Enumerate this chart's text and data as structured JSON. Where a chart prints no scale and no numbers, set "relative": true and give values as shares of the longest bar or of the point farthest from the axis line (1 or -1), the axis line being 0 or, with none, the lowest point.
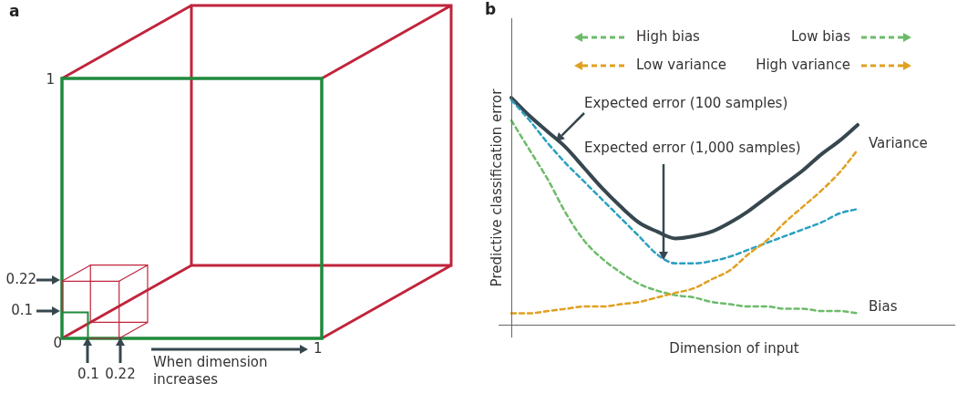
{
  "chart_data": [
    {
      "type": "other",
      "title": "a",
      "annotations": [
        "1",
        "0.22",
        "0.1",
        "0",
        "0.1",
        "0.22",
        "1",
        "When dimension increases"
      ]
    },
    {
      "type": "line",
      "title": "b",
      "xlabel": "Dimension of input",
      "ylabel": "Predictive classification error",
      "relative": true,
      "marker": "none",
      "categories": [
        null,
        null,
        null,
        null,
        null,
        null,
        null,
        null,
        null,
        null,
        null,
        null,
        null,
        null,
        null,
        null,
        null,
        null,
        null,
        null
      ],
      "series": [
        {
          "color": "#37474f",
          "line_style": "solid",
          "values": [
            1.0,
            0.92,
            0.85,
            0.78,
            0.69,
            0.6,
            0.52,
            0.45,
            0.41,
            0.38,
            0.39,
            0.41,
            0.45,
            0.5,
            0.56,
            0.62,
            0.68,
            0.75,
            0.81,
            0.88
          ]
        },
        {
          "color": "#2aa0c0",
          "line_style": "dashed",
          "values": [
            0.99,
            0.9,
            0.8,
            0.71,
            0.63,
            0.55,
            0.47,
            0.39,
            0.31,
            0.27,
            0.27,
            0.28,
            0.3,
            0.33,
            0.36,
            0.39,
            0.42,
            0.45,
            0.49,
            0.51
          ]
        },
        {
          "name": "Bias",
          "color": "#6dbb6a",
          "line_style": "dashed",
          "values": [
            0.9,
            0.77,
            0.64,
            0.49,
            0.37,
            0.29,
            0.23,
            0.18,
            0.15,
            0.13,
            0.12,
            0.1,
            0.09,
            0.08,
            0.08,
            0.07,
            0.07,
            0.06,
            0.06,
            0.05
          ]
        },
        {
          "name": "Variance",
          "color": "#e0a020",
          "line_style": "dashed",
          "values": [
            0.05,
            0.05,
            0.06,
            0.07,
            0.08,
            0.08,
            0.09,
            0.1,
            0.12,
            0.14,
            0.16,
            0.2,
            0.24,
            0.31,
            0.37,
            0.45,
            0.52,
            0.59,
            0.67,
            0.77
          ]
        }
      ],
      "annotations": [
        "High bias",
        "Low bias",
        "Low variance",
        "High variance",
        "Expected error (100 samples)",
        "Expected error (1,000 samples)"
      ]
    }
  ]
}
